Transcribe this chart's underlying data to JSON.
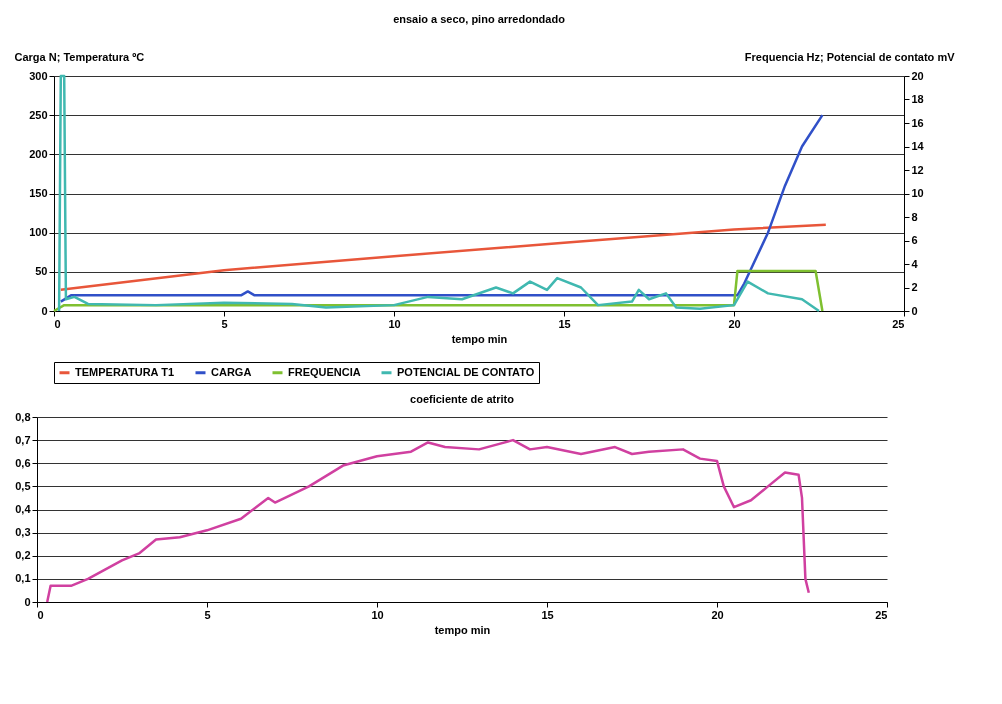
{
  "chart_data": [
    {
      "type": "line",
      "title": "ensaio a seco, pino arredondado",
      "xlabel": "tempo min",
      "ylabel": "Carga N; Temperatura ºC",
      "y2label": "Frequencia Hz; Potencial de contato mV",
      "xlim": [
        0,
        25
      ],
      "xticks": [
        0,
        5,
        10,
        15,
        20,
        25
      ],
      "ylim": [
        0,
        300
      ],
      "yticks": [
        0,
        50,
        100,
        150,
        200,
        250,
        300
      ],
      "y2lim": [
        0,
        20
      ],
      "y2ticks": [
        0,
        2,
        4,
        6,
        8,
        10,
        12,
        14,
        16,
        18,
        20
      ],
      "grid": "y",
      "legend": "bottom",
      "series": [
        {
          "name": "TEMPERATURA T1",
          "color": "#e8563a",
          "x": [
            0.2,
            5,
            10,
            15,
            20,
            22.7
          ],
          "values": [
            27,
            52,
            70,
            87,
            104,
            110
          ]
        },
        {
          "name": "CARGA",
          "color": "#3050c8",
          "x": [
            0.2,
            0.5,
            5.5,
            5.7,
            5.9,
            20.1,
            20.3,
            21,
            21.5,
            22,
            22.6
          ],
          "values": [
            12,
            20,
            20,
            25,
            20,
            20,
            35,
            100,
            160,
            210,
            250
          ]
        },
        {
          "name": "FREQUENCIA",
          "color": "#7fc030",
          "axis": "y2",
          "x": [
            0,
            0.3,
            20,
            20.1,
            22.4,
            22.6
          ],
          "values": [
            0,
            0.5,
            0.5,
            3.4,
            3.4,
            0
          ]
        },
        {
          "name": "POTENCIAL DE CONTATO",
          "color": "#40b8b0",
          "axis": "y2",
          "x": [
            0.15,
            0.2,
            0.3,
            0.35,
            0.6,
            1,
            3,
            5,
            7,
            8,
            10,
            11,
            12,
            13,
            13.5,
            14,
            14.5,
            14.8,
            15.5,
            16,
            17,
            17.2,
            17.5,
            18,
            18.3,
            19,
            20,
            20.4,
            21,
            22,
            22.5
          ],
          "values": [
            0,
            20,
            20,
            1,
            1.2,
            0.6,
            0.5,
            0.7,
            0.6,
            0.3,
            0.5,
            1.2,
            1,
            2,
            1.5,
            2.5,
            1.8,
            2.8,
            2,
            0.5,
            0.8,
            1.8,
            1,
            1.5,
            0.3,
            0.2,
            0.5,
            2.5,
            1.5,
            1,
            0
          ]
        }
      ]
    },
    {
      "type": "line",
      "title": "coeficiente de atrito",
      "xlabel": "tempo min",
      "xlim": [
        0,
        25
      ],
      "xticks": [
        0,
        5,
        10,
        15,
        20,
        25
      ],
      "ylim": [
        0,
        0.8
      ],
      "yticks": [
        0,
        {
          "value": 0.1,
          "label": "0,1"
        },
        {
          "value": 0.2,
          "label": "0,2"
        },
        {
          "value": 0.3,
          "label": "0,3"
        },
        {
          "value": 0.4,
          "label": "0,4"
        },
        {
          "value": 0.5,
          "label": "0,5"
        },
        {
          "value": 0.6,
          "label": "0,6"
        },
        {
          "value": 0.7,
          "label": "0,7"
        },
        {
          "value": 0.8,
          "label": "0,8"
        }
      ],
      "grid": "y",
      "series": [
        {
          "color": "#d040a0",
          "x": [
            0.3,
            0.4,
            1,
            1.5,
            2,
            2.5,
            3,
            3.5,
            4.2,
            5,
            6,
            6.8,
            7,
            8,
            9,
            10,
            11,
            11.5,
            12,
            13,
            14,
            14.5,
            15,
            16,
            17,
            17.5,
            18,
            19,
            19.5,
            20,
            20.2,
            20.5,
            21,
            21.5,
            22,
            22.4,
            22.5,
            22.6,
            22.7
          ],
          "values": [
            0,
            0.07,
            0.07,
            0.1,
            0.14,
            0.18,
            0.21,
            0.27,
            0.28,
            0.31,
            0.36,
            0.45,
            0.43,
            0.5,
            0.59,
            0.63,
            0.65,
            0.69,
            0.67,
            0.66,
            0.7,
            0.66,
            0.67,
            0.64,
            0.67,
            0.64,
            0.65,
            0.66,
            0.62,
            0.61,
            0.5,
            0.41,
            0.44,
            0.5,
            0.56,
            0.55,
            0.45,
            0.1,
            0.04
          ]
        }
      ]
    }
  ]
}
